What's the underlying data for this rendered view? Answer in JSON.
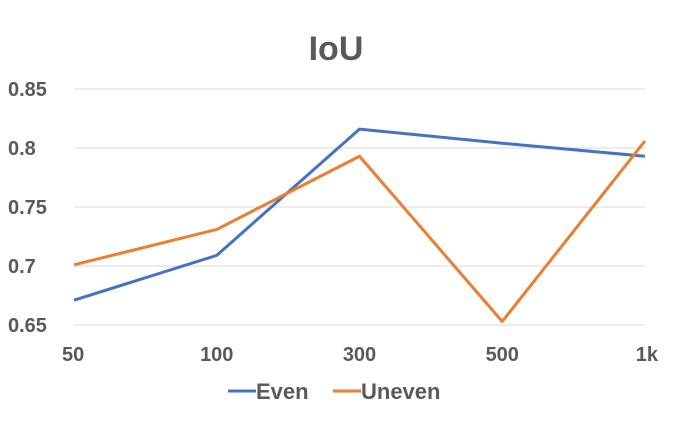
{
  "chart_data": {
    "type": "line",
    "title": "IoU",
    "xlabel": "",
    "ylabel": "",
    "categories": [
      "50",
      "100",
      "300",
      "500",
      "1k"
    ],
    "ylim": [
      0.65,
      0.85
    ],
    "yticks": [
      "0.65",
      "0.7",
      "0.75",
      "0.8",
      "0.85"
    ],
    "grid": true,
    "legend_position": "bottom",
    "series": [
      {
        "name": "Even",
        "color": "#4472C4",
        "values": [
          0.671,
          0.709,
          0.816,
          0.804,
          0.793
        ]
      },
      {
        "name": "Uneven",
        "color": "#ED7D31",
        "values": [
          0.701,
          0.731,
          0.793,
          0.653,
          0.806
        ]
      }
    ]
  }
}
